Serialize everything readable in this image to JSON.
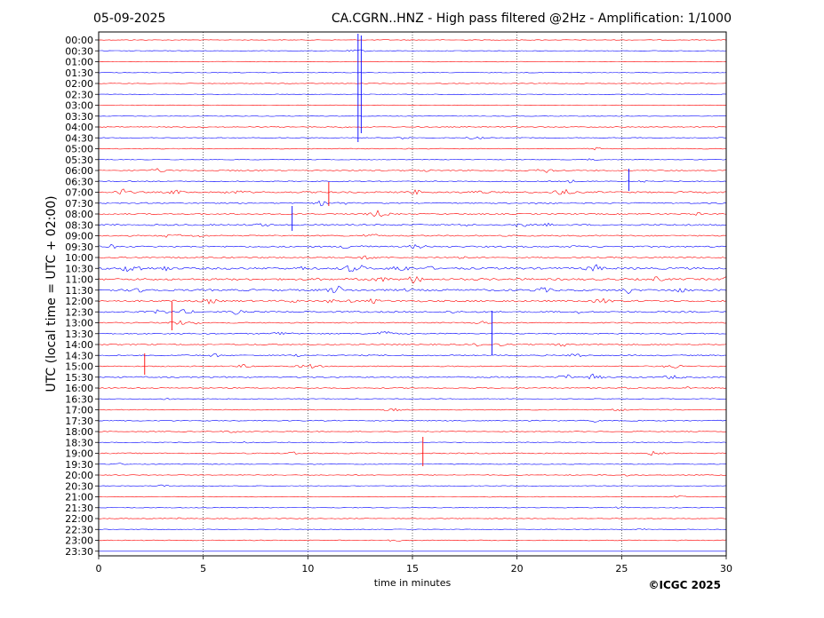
{
  "chart_data": {
    "type": "line",
    "title_left": "05-09-2025",
    "title_right": "CA.CGRN..HNZ - High pass filtered @2Hz - Amplification: 1/1000",
    "xlabel": "time in minutes",
    "ylabel": "UTC (local time = UTC + 02:00)",
    "copyright": "©ICGC 2025",
    "xlim": [
      0,
      30
    ],
    "xticks": [
      "0",
      "5",
      "10",
      "15",
      "20",
      "25",
      "30"
    ],
    "grid": "vertical dotted at x-ticks",
    "colors": {
      "odd_rows": "#0000ff",
      "even_rows": "#ff0000"
    },
    "rows": [
      "00:00",
      "00:30",
      "01:00",
      "01:30",
      "02:00",
      "02:30",
      "03:00",
      "03:30",
      "04:00",
      "04:30",
      "05:00",
      "05:30",
      "06:00",
      "06:30",
      "07:00",
      "07:30",
      "08:00",
      "08:30",
      "09:00",
      "09:30",
      "10:00",
      "10:30",
      "11:00",
      "11:30",
      "12:00",
      "12:30",
      "13:00",
      "13:30",
      "14:00",
      "14:30",
      "15:00",
      "15:30",
      "16:00",
      "16:30",
      "17:00",
      "17:30",
      "18:00",
      "18:30",
      "19:00",
      "19:30",
      "20:00",
      "20:30",
      "21:00",
      "21:30",
      "22:00",
      "22:30",
      "23:00",
      "23:30"
    ],
    "activity": [
      0.05,
      0.08,
      0.05,
      0.05,
      0.05,
      0.05,
      0.05,
      0.06,
      0.15,
      0.2,
      0.15,
      0.12,
      0.35,
      0.3,
      0.7,
      0.4,
      0.4,
      0.6,
      0.5,
      0.6,
      0.5,
      1.0,
      0.9,
      1.0,
      0.8,
      0.6,
      0.4,
      0.4,
      0.35,
      0.4,
      0.35,
      0.5,
      0.2,
      0.15,
      0.2,
      0.3,
      0.1,
      0.15,
      0.35,
      0.15,
      0.1,
      0.1,
      0.08,
      0.08,
      0.08,
      0.1,
      0.15,
      0
    ]
  }
}
